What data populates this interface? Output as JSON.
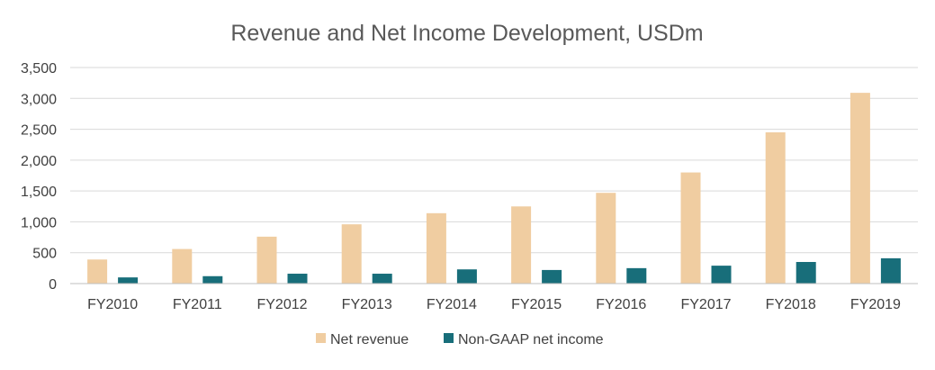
{
  "chart_data": {
    "type": "bar",
    "title": "Revenue and Net Income Development, USDm",
    "xlabel": "",
    "ylabel": "",
    "categories": [
      "FY2010",
      "FY2011",
      "FY2012",
      "FY2013",
      "FY2014",
      "FY2015",
      "FY2016",
      "FY2017",
      "FY2018",
      "FY2019"
    ],
    "series": [
      {
        "name": "Net revenue",
        "color": "#f0cda1",
        "values": [
          390,
          560,
          760,
          960,
          1140,
          1250,
          1470,
          1800,
          2450,
          3090
        ]
      },
      {
        "name": "Non-GAAP net income",
        "color": "#186e7a",
        "values": [
          100,
          120,
          160,
          160,
          230,
          220,
          250,
          290,
          350,
          410
        ]
      }
    ],
    "ylim": [
      0,
      3500
    ],
    "yticks": [
      0,
      500,
      1000,
      1500,
      2000,
      2500,
      3000,
      3500
    ],
    "ytick_labels": [
      "0",
      "500",
      "1,000",
      "1,500",
      "2,000",
      "2,500",
      "3,000",
      "3,500"
    ],
    "grid": true,
    "legend_position": "bottom"
  }
}
